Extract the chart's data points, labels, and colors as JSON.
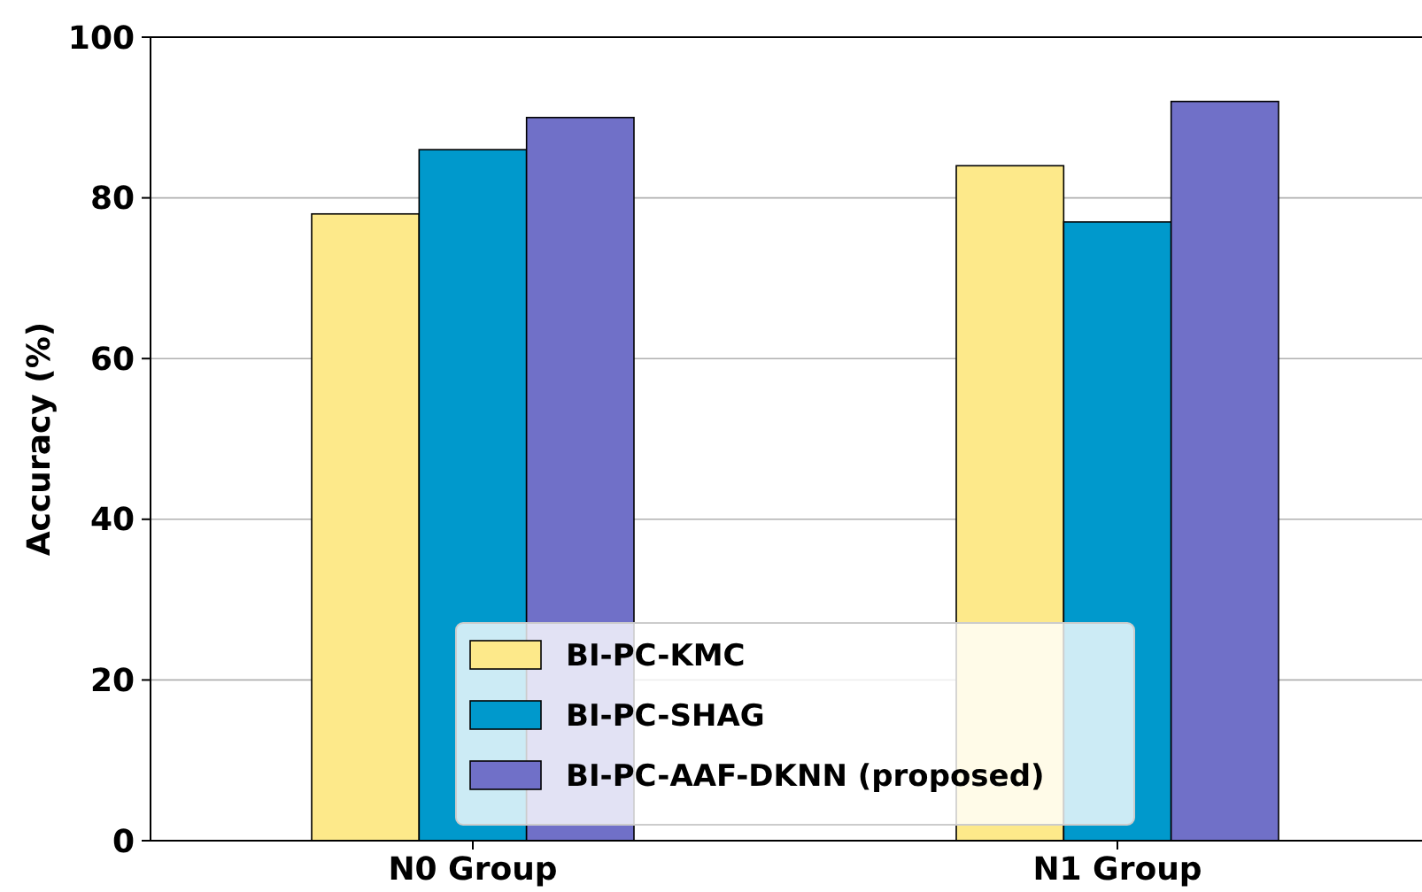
{
  "chart_data": {
    "type": "bar",
    "ylabel": "Accuracy (%)",
    "categories": [
      "N0 Group",
      "N1 Group"
    ],
    "series": [
      {
        "name": "BI-PC-KMC",
        "color": "#fde98a",
        "values": [
          78,
          84
        ]
      },
      {
        "name": "BI-PC-SHAG",
        "color": "#0099cc",
        "values": [
          86,
          77
        ]
      },
      {
        "name": "BI-PC-AAF-DKNN (proposed)",
        "color": "#7070c8",
        "values": [
          90,
          92
        ]
      }
    ],
    "ylim": [
      0,
      100
    ],
    "yticks": [
      0,
      20,
      40,
      60,
      80,
      100
    ],
    "grid": "y",
    "legend": "bottom"
  }
}
